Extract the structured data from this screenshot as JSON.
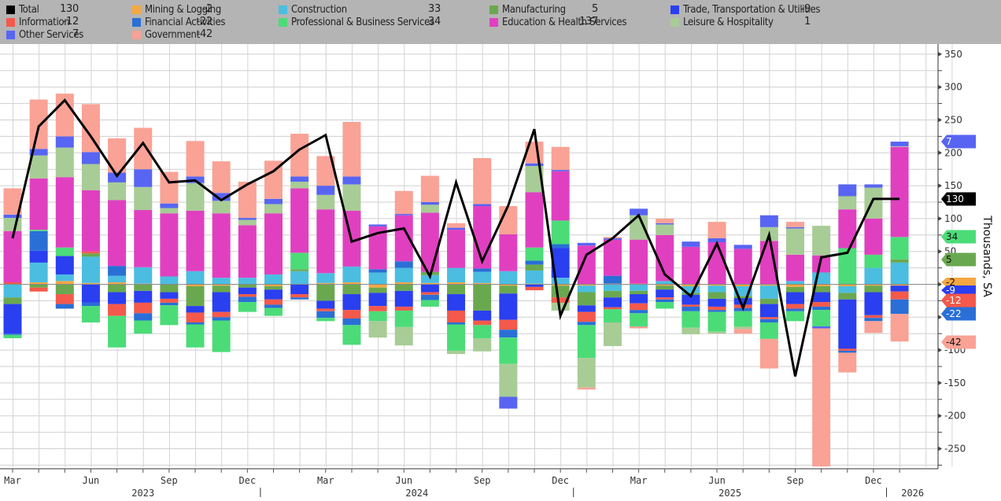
{
  "legend": {
    "items": [
      {
        "key": "total",
        "label": "Total",
        "value": "130",
        "color": "#000000"
      },
      {
        "key": "information",
        "label": "Information",
        "value": "-12",
        "color": "#f4594b"
      },
      {
        "key": "other",
        "label": "Other Services",
        "value": "7",
        "color": "#5865f2"
      },
      {
        "key": "mining",
        "label": "Mining & Logging",
        "value": "-2",
        "color": "#f5a742"
      },
      {
        "key": "financial",
        "label": "Financial Activities",
        "value": "-22",
        "color": "#2a6fd6"
      },
      {
        "key": "government",
        "label": "Government",
        "value": "-42",
        "color": "#f9a295"
      },
      {
        "key": "construction",
        "label": "Construction",
        "value": "33",
        "color": "#4bbde0"
      },
      {
        "key": "professional",
        "label": "Professional & Business Services",
        "value": "34",
        "color": "#4bdc78"
      },
      {
        "key": "manufacturing",
        "label": "Manufacturing",
        "value": "5",
        "color": "#6aa84f"
      },
      {
        "key": "education",
        "label": "Education & Health Services",
        "value": "137",
        "color": "#e040c0"
      },
      {
        "key": "trade",
        "label": "Trade, Transportation & Utilities",
        "value": "-9",
        "color": "#2a3ff0"
      },
      {
        "key": "leisure",
        "label": "Leisure & Hospitality",
        "value": "1",
        "color": "#a8cc96"
      }
    ]
  },
  "chart_data": {
    "type": "bar",
    "subtype": "stacked-bar-with-line",
    "title": "",
    "xlabel": "",
    "ylabel": "Thousands, SA",
    "ylim": [
      -280,
      360
    ],
    "yticks": [
      350,
      300,
      250,
      200,
      150,
      100,
      50,
      0,
      -50,
      -100,
      -150,
      -200,
      -250
    ],
    "grid": true,
    "legend_position": "top",
    "x_month_labels": [
      "Mar",
      "Jun",
      "Sep",
      "Dec",
      "Mar",
      "Jun",
      "Sep",
      "Dec",
      "Mar",
      "Jun",
      "Sep",
      "Dec"
    ],
    "x_year_labels": [
      "2023",
      "2024",
      "2025",
      "2026"
    ],
    "categories": [
      "2023-03",
      "2023-04",
      "2023-05",
      "2023-06",
      "2023-07",
      "2023-08",
      "2023-09",
      "2023-10",
      "2023-11",
      "2023-12",
      "2024-01",
      "2024-02",
      "2024-03",
      "2024-04",
      "2024-05",
      "2024-06",
      "2024-07",
      "2024-08",
      "2024-09",
      "2024-10",
      "2024-11",
      "2024-12",
      "2025-01",
      "2025-02",
      "2025-03",
      "2025-04",
      "2025-05",
      "2025-06",
      "2025-07",
      "2025-08",
      "2025-09",
      "2025-10",
      "2025-11",
      "2025-12",
      "2026-01"
    ],
    "series": [
      {
        "name": "Education & Health Services",
        "key": "education",
        "values": [
          78,
          78,
          107,
          93,
          100,
          87,
          96,
          92,
          98,
          80,
          93,
          98,
          97,
          85,
          65,
          70,
          90,
          58,
          95,
          56,
          84,
          75,
          59,
          55,
          67,
          70,
          57,
          64,
          54,
          66,
          40,
          26,
          59,
          55,
          137
        ]
      },
      {
        "name": "Professional & Business Services",
        "key": "professional",
        "values": [
          -5,
          2,
          13,
          -25,
          -48,
          -20,
          -30,
          -35,
          -48,
          -15,
          -12,
          25,
          -5,
          -30,
          -15,
          -25,
          -10,
          -40,
          -20,
          -40,
          20,
          36,
          -50,
          -20,
          -20,
          -10,
          -25,
          -30,
          -23,
          -25,
          -15,
          -25,
          55,
          20,
          34
        ]
      },
      {
        "name": "Construction",
        "key": "construction",
        "values": [
          -20,
          30,
          10,
          40,
          10,
          25,
          12,
          20,
          10,
          10,
          15,
          20,
          15,
          24,
          18,
          22,
          12,
          22,
          17,
          20,
          20,
          10,
          -10,
          -10,
          -10,
          5,
          -10,
          -10,
          -15,
          -20,
          5,
          18,
          -10,
          25,
          33
        ]
      },
      {
        "name": "Manufacturing",
        "key": "manufacturing",
        "values": [
          -10,
          -5,
          -15,
          5,
          -12,
          -10,
          -12,
          -30,
          -10,
          -5,
          -5,
          3,
          -25,
          -15,
          -8,
          -10,
          5,
          -15,
          -40,
          -12,
          9,
          -18,
          -20,
          -10,
          -5,
          -6,
          -3,
          -10,
          -3,
          -8,
          -8,
          -9,
          -10,
          -10,
          5
        ]
      },
      {
        "name": "Trade, Transportation & Utilities",
        "key": "trade",
        "values": [
          -45,
          18,
          28,
          -28,
          -18,
          -18,
          -10,
          -10,
          -30,
          -10,
          -15,
          -15,
          -12,
          -24,
          -20,
          -24,
          -12,
          -25,
          -15,
          -40,
          -4,
          45,
          -10,
          -15,
          -14,
          -12,
          -15,
          -12,
          -10,
          -20,
          -18,
          -15,
          -75,
          -35,
          -9
        ]
      },
      {
        "name": "Information",
        "key": "information",
        "values": [
          3,
          -6,
          -15,
          3,
          -18,
          -16,
          -6,
          -15,
          -8,
          -4,
          -8,
          -5,
          -4,
          -13,
          -8,
          -6,
          -4,
          -18,
          -7,
          -15,
          -5,
          -8,
          -15,
          -3,
          -10,
          -3,
          -3,
          -5,
          -5,
          -3,
          -7,
          -7,
          -3,
          -4,
          -12
        ]
      },
      {
        "name": "Financial Activities",
        "key": "financial",
        "values": [
          -2,
          30,
          -7,
          -5,
          15,
          -11,
          -4,
          -3,
          -5,
          -8,
          -5,
          -3,
          -10,
          -10,
          5,
          10,
          -8,
          -3,
          5,
          -12,
          6,
          6,
          -5,
          12,
          -5,
          -4,
          -7,
          -3,
          -5,
          -5,
          -4,
          -5,
          -3,
          -5,
          -22
        ]
      },
      {
        "name": "Mining & Logging",
        "key": "mining",
        "values": [
          0,
          3,
          5,
          2,
          3,
          1,
          0,
          -3,
          -2,
          0,
          -3,
          0,
          2,
          3,
          -5,
          3,
          2,
          3,
          2,
          -2,
          1,
          -2,
          -2,
          1,
          1,
          -2,
          -3,
          -2,
          -3,
          -2,
          -4,
          -3,
          -3,
          -2,
          -2
        ]
      },
      {
        "name": "Leisure & Hospitality",
        "key": "leisure",
        "values": [
          20,
          35,
          45,
          40,
          27,
          35,
          8,
          42,
          19,
          8,
          14,
          10,
          22,
          40,
          -25,
          -28,
          12,
          -5,
          -20,
          -50,
          40,
          -12,
          -45,
          -36,
          37,
          16,
          -10,
          -3,
          -4,
          21,
          40,
          45,
          20,
          47,
          1
        ]
      },
      {
        "name": "Other Services",
        "key": "other",
        "values": [
          5,
          10,
          17,
          18,
          15,
          27,
          7,
          10,
          12,
          3,
          8,
          8,
          14,
          12,
          3,
          2,
          4,
          3,
          3,
          -18,
          4,
          2,
          4,
          2,
          10,
          2,
          8,
          6,
          6,
          18,
          2,
          -3,
          18,
          5,
          7
        ]
      },
      {
        "name": "Government",
        "key": "government",
        "values": [
          40,
          75,
          65,
          73,
          52,
          63,
          48,
          54,
          48,
          55,
          58,
          65,
          45,
          83,
          0,
          35,
          40,
          7,
          70,
          43,
          33,
          35,
          -3,
          2,
          -3,
          7,
          0,
          25,
          -7,
          -45,
          8,
          -210,
          -30,
          -18,
          -42
        ]
      }
    ],
    "total": {
      "name": "Total",
      "key": "total",
      "values": [
        70,
        240,
        280,
        225,
        165,
        215,
        155,
        158,
        128,
        152,
        172,
        205,
        227,
        65,
        78,
        85,
        12,
        155,
        35,
        120,
        236,
        -48,
        45,
        70,
        105,
        15,
        -18,
        62,
        -36,
        75,
        -140,
        41,
        48,
        130,
        130
      ]
    }
  },
  "right_tags": [
    {
      "key": "other",
      "text": "7",
      "color": "#5865f2",
      "text_color": "#ffffff"
    },
    {
      "key": "total",
      "text": "130",
      "color": "#000000",
      "text_color": "#ffffff"
    },
    {
      "key": "professional",
      "text": "34",
      "color": "#4bdc78",
      "text_color": "#111111"
    },
    {
      "key": "manufacturing",
      "text": "5",
      "color": "#6aa84f",
      "text_color": "#111111"
    },
    {
      "key": "mining",
      "text": "-2",
      "color": "#f5a742",
      "text_color": "#111111"
    },
    {
      "key": "trade",
      "text": "-9",
      "color": "#2a3ff0",
      "text_color": "#ffffff"
    },
    {
      "key": "information",
      "text": "-12",
      "color": "#f4594b",
      "text_color": "#ffffff"
    },
    {
      "key": "financial",
      "text": "-22",
      "color": "#2a6fd6",
      "text_color": "#ffffff"
    },
    {
      "key": "government",
      "text": "-42",
      "color": "#f9a295",
      "text_color": "#111111"
    }
  ]
}
